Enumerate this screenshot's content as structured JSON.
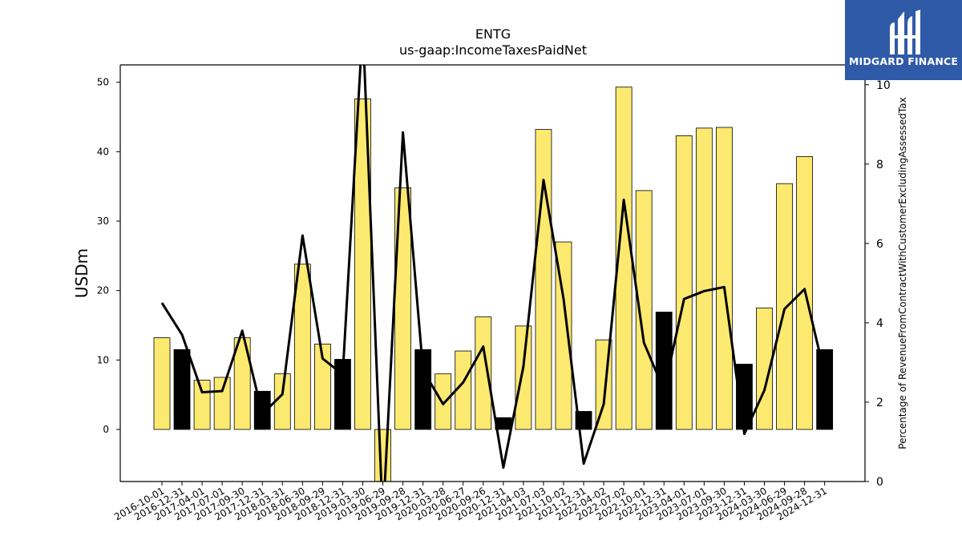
{
  "brand": {
    "name": "MIDGARD FINANCE",
    "bg_color": "#2f5aa8"
  },
  "chart_data": {
    "type": "bar",
    "title": "ENTG",
    "subtitle": "us-gaap:IncomeTaxesPaidNet",
    "ylabel": "USDm",
    "y2label": "Percentage of RevenueFromContractWithCustomerExcludingAssessedTax",
    "ylim": [
      -7.5,
      52.5
    ],
    "y2lim": [
      0,
      10.5
    ],
    "yticks": [
      0,
      10,
      20,
      30,
      40,
      50
    ],
    "y2ticks": [
      0,
      2,
      4,
      6,
      8,
      10
    ],
    "categories": [
      "2016-10-01",
      "2016-12-31",
      "2017-04-01",
      "2017-07-01",
      "2017-09-30",
      "2017-12-31",
      "2018-03-31",
      "2018-06-30",
      "2018-09-29",
      "2018-12-31",
      "2019-03-30",
      "2019-06-29",
      "2019-09-28",
      "2019-12-31",
      "2020-03-28",
      "2020-06-27",
      "2020-09-26",
      "2020-12-31",
      "2021-04-03",
      "2021-07-03",
      "2021-10-02",
      "2021-12-31",
      "2022-04-02",
      "2022-07-02",
      "2022-10-01",
      "2022-12-31",
      "2023-04-01",
      "2023-07-01",
      "2023-09-30",
      "2023-12-31",
      "2024-03-30",
      "2024-06-29",
      "2024-09-28",
      "2024-12-31"
    ],
    "series": [
      {
        "type": "bar",
        "values": [
          13.2,
          11.5,
          7.1,
          7.5,
          13.2,
          5.5,
          8.0,
          23.8,
          12.3,
          10.1,
          47.6,
          -9.0,
          34.8,
          11.5,
          8.0,
          11.3,
          16.2,
          1.7,
          14.9,
          43.2,
          27.0,
          2.6,
          12.9,
          49.3,
          34.4,
          16.9,
          42.3,
          43.4,
          43.5,
          9.4,
          17.5,
          35.4,
          39.3,
          11.5
        ],
        "colors": [
          "#fce96f",
          "#000000",
          "#fce96f",
          "#fce96f",
          "#fce96f",
          "#000000",
          "#fce96f",
          "#fce96f",
          "#fce96f",
          "#000000",
          "#fce96f",
          "#fce96f",
          "#fce96f",
          "#000000",
          "#fce96f",
          "#fce96f",
          "#fce96f",
          "#000000",
          "#fce96f",
          "#fce96f",
          "#fce96f",
          "#000000",
          "#fce96f",
          "#fce96f",
          "#fce96f",
          "#000000",
          "#fce96f",
          "#fce96f",
          "#fce96f",
          "#000000",
          "#fce96f",
          "#fce96f",
          "#fce96f",
          "#000000"
        ]
      },
      {
        "type": "line",
        "axis": "right",
        "color": "#000000",
        "values": [
          4.5,
          3.7,
          2.25,
          2.28,
          3.8,
          1.7,
          2.2,
          6.2,
          3.1,
          2.7,
          11.5,
          -1.0,
          8.8,
          2.8,
          1.95,
          2.5,
          3.4,
          0.35,
          2.9,
          7.6,
          4.6,
          0.45,
          1.95,
          7.1,
          3.5,
          2.3,
          4.6,
          4.8,
          4.9,
          1.2,
          2.3,
          4.35,
          4.85,
          2.7
        ]
      }
    ],
    "legend": "none",
    "grid": false
  }
}
